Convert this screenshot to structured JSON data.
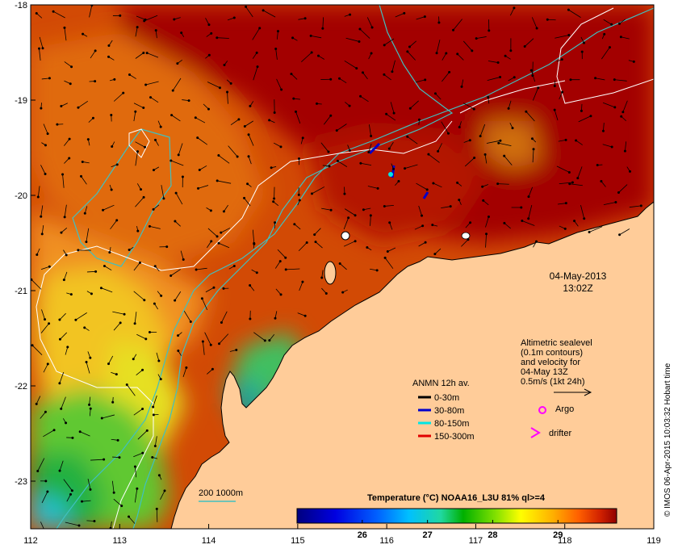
{
  "map": {
    "lon_range": [
      112,
      119
    ],
    "lat_range": [
      -23.5,
      -18
    ],
    "lon_ticks": [
      "112",
      "113",
      "114",
      "115",
      "116",
      "117",
      "118",
      "119"
    ],
    "lat_ticks": [
      "-18",
      "-19",
      "-20",
      "-21",
      "-22",
      "-23"
    ],
    "land_color": "#FFCC99",
    "ocean_warm_color": "#A30000"
  },
  "date_label": {
    "date": "04-May-2013",
    "time": "13:02Z"
  },
  "altimetry_note": {
    "lines": [
      "Altimetric sealevel",
      "(0.1m contours)",
      "and velocity for",
      "04-May 13Z",
      "0.5m/s (1kt 24h)"
    ]
  },
  "anmn_legend": {
    "title": "ANMN 12h av.",
    "items": [
      {
        "label": "0-30m",
        "color": "#000000"
      },
      {
        "label": "30-80m",
        "color": "#0000CC"
      },
      {
        "label": "80-150m",
        "color": "#00E5E5"
      },
      {
        "label": "150-300m",
        "color": "#E00000"
      }
    ]
  },
  "symbols_legend": {
    "argo": {
      "label": "Argo",
      "color": "#FF00FF"
    },
    "drifter": {
      "label": "drifter",
      "color": "#FF00FF"
    }
  },
  "isobath_legend": {
    "label": "200 1000m",
    "color": "#40C0C0"
  },
  "colorbar": {
    "title": "Temperature (°C) NOAA16_L3U 81% ql>=4",
    "min": 25.0,
    "max": 29.9,
    "ticks": [
      "26",
      "27",
      "28",
      "29"
    ],
    "tick_values": [
      26,
      27,
      28,
      29
    ]
  },
  "credit": "© IMOS 06-Apr-2015 10:03:32 Hobart time"
}
